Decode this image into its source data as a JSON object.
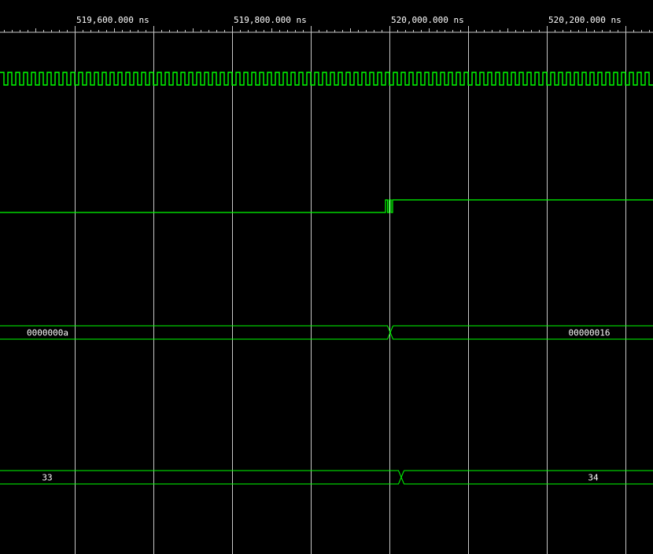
{
  "colors": {
    "background": "#000000",
    "grid": "#c8c8c8",
    "ruler_text": "#ffffff",
    "trace": "#00ff00",
    "bus_text": "#ffffff"
  },
  "timeline": {
    "start_ns": 519505,
    "end_ns": 520335,
    "major_step_ns": 100,
    "labeled_step_ns": 200,
    "minor_ticks_per_major": 10,
    "labels": [
      {
        "time_ns": 519600,
        "text": "519,600.000 ns"
      },
      {
        "time_ns": 519800,
        "text": "519,800.000 ns"
      },
      {
        "time_ns": 520000,
        "text": "520,000.000 ns"
      },
      {
        "time_ns": 520200,
        "text": "520,200.000 ns"
      }
    ]
  },
  "signals": [
    {
      "id": "clock",
      "kind": "clock",
      "period_ns": 10
    },
    {
      "id": "pulse",
      "kind": "bit",
      "initial": 0,
      "transitions_ns": [
        519995,
        519997.5,
        519999.5,
        520002,
        520004
      ]
    },
    {
      "id": "bus32",
      "kind": "bus",
      "segments": [
        {
          "start_ns": 519505,
          "end_ns": 520001,
          "value": "0000000a"
        },
        {
          "start_ns": 520001,
          "end_ns": 520335,
          "value": "00000016"
        }
      ]
    },
    {
      "id": "bus8",
      "kind": "bus",
      "segments": [
        {
          "start_ns": 519505,
          "end_ns": 520015,
          "value": "33"
        },
        {
          "start_ns": 520015,
          "end_ns": 520335,
          "value": "34"
        }
      ]
    }
  ]
}
